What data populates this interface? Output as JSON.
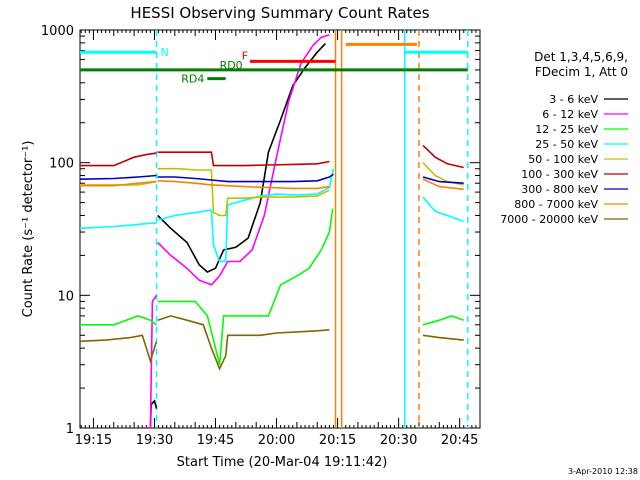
{
  "chart_data": {
    "type": "line",
    "title": "HESSI Observing Summary Count Rates",
    "xlabel": "Start Time (20-Mar-04 19:11:42)",
    "ylabel": "Count Rate (s⁻¹ detector⁻¹)",
    "ylog": true,
    "ylim": [
      1,
      1000
    ],
    "xlim": [
      "19:11:42",
      "20:50:00"
    ],
    "x_ticks": [
      "19:15",
      "19:30",
      "19:45",
      "20:00",
      "20:15",
      "20:30",
      "20:45"
    ],
    "x_minutes": [
      15,
      30,
      45,
      60,
      75,
      90,
      105
    ],
    "y_ticks": [
      "1",
      "10",
      "100",
      "1000"
    ],
    "y_tick_values": [
      1,
      10,
      100,
      1000
    ],
    "legend_header": [
      "Det 1,3,4,5,6,9,",
      "FDecim 1, Att 0"
    ],
    "legend_position": "right",
    "footer": "3-Apr-2010 12:38",
    "flags": [
      {
        "label": "N",
        "color": "#00ffff",
        "level": 680,
        "segments": [
          [
            11.7,
            30.5
          ],
          [
            91.5,
            107
          ]
        ]
      },
      {
        "label": "F",
        "color": "#ff0000",
        "level": 580,
        "segments": [
          [
            53.5,
            74.5
          ]
        ]
      },
      {
        "label": "RD0",
        "color": "#008000",
        "level": 500,
        "segments": [
          [
            11.7,
            107
          ]
        ]
      },
      {
        "label": "RD4",
        "color": "#008000",
        "level": 430,
        "segments": [
          [
            43,
            47.5
          ]
        ]
      },
      {
        "label": "",
        "color": "#ff8000",
        "level": 780,
        "segments": [
          [
            77,
            94.5
          ]
        ]
      }
    ],
    "vlines": [
      {
        "x": 30.5,
        "color": "#00ffff",
        "dash": true
      },
      {
        "x": 74.5,
        "color": "#ff8000",
        "dash": false
      },
      {
        "x": 76,
        "color": "#ff8000",
        "dash": false
      },
      {
        "x": 91.5,
        "color": "#00ffff",
        "dash": false
      },
      {
        "x": 95,
        "color": "#ff8000",
        "dash": true
      },
      {
        "x": 107,
        "color": "#00ffff",
        "dash": true
      }
    ],
    "series": [
      {
        "name": "3 - 6 keV",
        "color": "#000000",
        "segments": [
          [
            [
              27,
              1
            ],
            [
              29,
              1
            ],
            [
              29.2,
              1.5
            ],
            [
              30,
              1.6
            ],
            [
              30.5,
              1.4
            ]
          ],
          [
            [
              30.8,
              40
            ],
            [
              34,
              32
            ],
            [
              38,
              25
            ],
            [
              41,
              17
            ],
            [
              43,
              15
            ],
            [
              45,
              16
            ],
            [
              47,
              22
            ],
            [
              50,
              23
            ],
            [
              53,
              27
            ],
            [
              56,
              50
            ],
            [
              58,
              120
            ],
            [
              61,
              210
            ],
            [
              64,
              380
            ],
            [
              67,
              520
            ],
            [
              70,
              680
            ],
            [
              72,
              790
            ]
          ]
        ]
      },
      {
        "name": "6 - 12 keV",
        "color": "#ff00ff",
        "segments": [
          [
            [
              27,
              1
            ],
            [
              29,
              1
            ],
            [
              29.5,
              9
            ],
            [
              30.5,
              10
            ]
          ],
          [
            [
              30.8,
              25
            ],
            [
              34,
              20
            ],
            [
              38,
              16
            ],
            [
              41,
              13
            ],
            [
              44,
              12
            ],
            [
              46,
              14
            ],
            [
              48,
              18
            ],
            [
              51,
              18
            ],
            [
              54,
              22
            ],
            [
              57,
              40
            ],
            [
              60,
              110
            ],
            [
              63,
              290
            ],
            [
              66,
              560
            ],
            [
              69,
              770
            ],
            [
              71,
              880
            ],
            [
              73,
              920
            ]
          ]
        ]
      },
      {
        "name": "12 - 25 keV",
        "color": "#00ff00",
        "segments": [
          [
            [
              11.7,
              6
            ],
            [
              20,
              6
            ],
            [
              26,
              7
            ],
            [
              29,
              6.5
            ],
            [
              30.5,
              6
            ]
          ],
          [
            [
              30.8,
              9
            ],
            [
              35,
              9
            ],
            [
              40,
              9
            ],
            [
              43,
              7
            ],
            [
              45,
              4
            ],
            [
              46,
              3
            ],
            [
              47,
              7
            ],
            [
              51,
              7
            ],
            [
              55,
              7
            ],
            [
              58,
              7
            ],
            [
              61,
              12
            ],
            [
              65,
              14
            ],
            [
              68,
              16
            ],
            [
              71,
              22
            ],
            [
              73,
              30
            ],
            [
              73.8,
              45
            ]
          ],
          [
            [
              96,
              6
            ],
            [
              100,
              6.5
            ],
            [
              103,
              7
            ],
            [
              106,
              6.5
            ]
          ]
        ]
      },
      {
        "name": "25 - 50 keV",
        "color": "#00ffff",
        "segments": [
          [
            [
              11.7,
              32
            ],
            [
              20,
              33
            ],
            [
              25,
              34
            ],
            [
              29,
              35
            ],
            [
              30.5,
              35
            ]
          ],
          [
            [
              30.8,
              37
            ],
            [
              35,
              40
            ],
            [
              40,
              42
            ],
            [
              44,
              44
            ],
            [
              44.5,
              24
            ],
            [
              46,
              18
            ],
            [
              47.5,
              18
            ],
            [
              48,
              48
            ],
            [
              52,
              52
            ],
            [
              56,
              56
            ],
            [
              60,
              58
            ],
            [
              65,
              57
            ],
            [
              70,
              58
            ],
            [
              73,
              65
            ],
            [
              74,
              90
            ]
          ],
          [
            [
              96,
              55
            ],
            [
              99,
              43
            ],
            [
              102,
              40
            ],
            [
              106,
              36
            ]
          ]
        ]
      },
      {
        "name": "50 - 100 keV",
        "color": "#c0c000",
        "segments": [
          [
            [
              11.7,
              68
            ],
            [
              20,
              68
            ],
            [
              26,
              68
            ],
            [
              30.5,
              72
            ]
          ],
          [
            [
              30.8,
              90
            ],
            [
              36,
              90
            ],
            [
              40,
              88
            ],
            [
              44,
              88
            ],
            [
              44.5,
              42
            ],
            [
              46,
              40
            ],
            [
              47.5,
              40
            ],
            [
              48,
              54
            ],
            [
              52,
              54
            ],
            [
              56,
              55
            ],
            [
              60,
              55
            ],
            [
              64,
              55
            ],
            [
              70,
              56
            ],
            [
              73,
              62
            ]
          ],
          [
            [
              96,
              100
            ],
            [
              99,
              80
            ],
            [
              102,
              72
            ],
            [
              106,
              68
            ]
          ]
        ]
      },
      {
        "name": "100 - 300 keV",
        "color": "#c00000",
        "segments": [
          [
            [
              11.7,
              95
            ],
            [
              20,
              95
            ],
            [
              25,
              110
            ],
            [
              28,
              115
            ],
            [
              30.5,
              118
            ]
          ],
          [
            [
              30.8,
              120
            ],
            [
              35,
              120
            ],
            [
              40,
              120
            ],
            [
              44,
              120
            ],
            [
              44.5,
              95
            ],
            [
              48,
              95
            ],
            [
              52,
              95
            ],
            [
              58,
              96
            ],
            [
              64,
              97
            ],
            [
              70,
              98
            ],
            [
              73,
              102
            ]
          ],
          [
            [
              96,
              135
            ],
            [
              99,
              110
            ],
            [
              102,
              98
            ],
            [
              106,
              92
            ]
          ]
        ]
      },
      {
        "name": "300 - 800 keV",
        "color": "#0000c0",
        "segments": [
          [
            [
              11.7,
              75
            ],
            [
              20,
              76
            ],
            [
              26,
              78
            ],
            [
              30.5,
              80
            ]
          ],
          [
            [
              30.8,
              78
            ],
            [
              35,
              78
            ],
            [
              40,
              76
            ],
            [
              44,
              74
            ],
            [
              48,
              72
            ],
            [
              52,
              72
            ],
            [
              58,
              72
            ],
            [
              64,
              72
            ],
            [
              70,
              73
            ],
            [
              73,
              78
            ],
            [
              74,
              82
            ]
          ],
          [
            [
              96,
              78
            ],
            [
              100,
              72
            ],
            [
              106,
              70
            ]
          ]
        ]
      },
      {
        "name": "800 - 7000 keV",
        "color": "#ff8000",
        "segments": [
          [
            [
              11.7,
              67
            ],
            [
              20,
              67
            ],
            [
              26,
              70
            ],
            [
              30.5,
              72
            ]
          ],
          [
            [
              30.8,
              73
            ],
            [
              35,
              72
            ],
            [
              40,
              70
            ],
            [
              44,
              68
            ],
            [
              48,
              67
            ],
            [
              52,
              66
            ],
            [
              58,
              65
            ],
            [
              64,
              64
            ],
            [
              70,
              64
            ],
            [
              73,
              66
            ]
          ],
          [
            [
              96,
              75
            ],
            [
              100,
              66
            ],
            [
              106,
              63
            ]
          ]
        ]
      },
      {
        "name": "7000 - 20000 keV",
        "color": "#806600",
        "segments": [
          [
            [
              11.7,
              4.5
            ],
            [
              18,
              4.6
            ],
            [
              24,
              4.8
            ],
            [
              27,
              5
            ],
            [
              29,
              3.2
            ],
            [
              30.5,
              4.5
            ]
          ],
          [
            [
              30.8,
              6.5
            ],
            [
              34,
              7
            ],
            [
              38,
              6.5
            ],
            [
              42,
              6
            ],
            [
              44,
              4
            ],
            [
              46,
              2.8
            ],
            [
              47.5,
              3.5
            ],
            [
              48,
              5
            ],
            [
              52,
              5
            ],
            [
              56,
              5
            ],
            [
              60,
              5.2
            ],
            [
              65,
              5.3
            ],
            [
              70,
              5.4
            ],
            [
              73,
              5.5
            ]
          ],
          [
            [
              96,
              5
            ],
            [
              100,
              4.8
            ],
            [
              106,
              4.6
            ]
          ]
        ]
      }
    ]
  }
}
